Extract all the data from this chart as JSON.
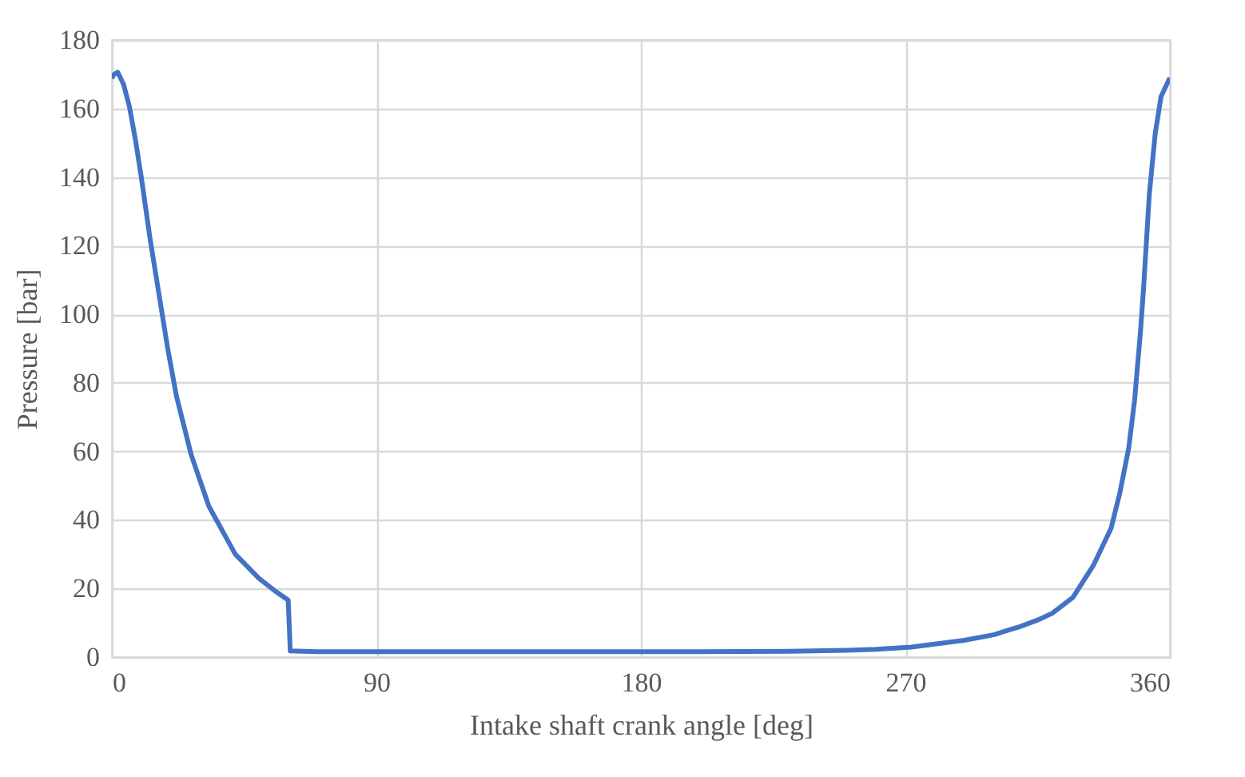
{
  "chart_data": {
    "type": "line",
    "xlabel": "Intake shaft crank angle [deg]",
    "ylabel": "Pressure [bar]",
    "xlim": [
      0,
      360
    ],
    "xticks": [
      0,
      90,
      180,
      270,
      360
    ],
    "ylim": [
      0,
      180
    ],
    "yticks": [
      0,
      20,
      40,
      60,
      80,
      100,
      120,
      140,
      160,
      180
    ],
    "grid": true,
    "marker": "none",
    "line_style": "solid",
    "series": [
      {
        "color": "#4472c4",
        "x": [
          0,
          0.5,
          2,
          4,
          6,
          8,
          10,
          13,
          16,
          19,
          22,
          27,
          33,
          42,
          50,
          56,
          60,
          60.7,
          70,
          100,
          150,
          200,
          230,
          250,
          260,
          272,
          290,
          300,
          309,
          315,
          320,
          327,
          334,
          340,
          343,
          346,
          348,
          350,
          351,
          353,
          355,
          357,
          360
        ],
        "values": [
          168.8,
          169.8,
          170.6,
          167,
          160.4,
          151,
          140,
          122,
          106,
          90,
          76,
          59,
          44,
          30,
          23,
          19,
          16.6,
          1.8,
          1.6,
          1.6,
          1.6,
          1.6,
          1.7,
          2,
          2.3,
          2.9,
          4.9,
          6.5,
          8.9,
          10.8,
          12.8,
          17.4,
          26.8,
          37.6,
          48,
          61,
          75,
          95,
          107,
          135,
          152.6,
          163.5,
          169
        ]
      }
    ]
  }
}
